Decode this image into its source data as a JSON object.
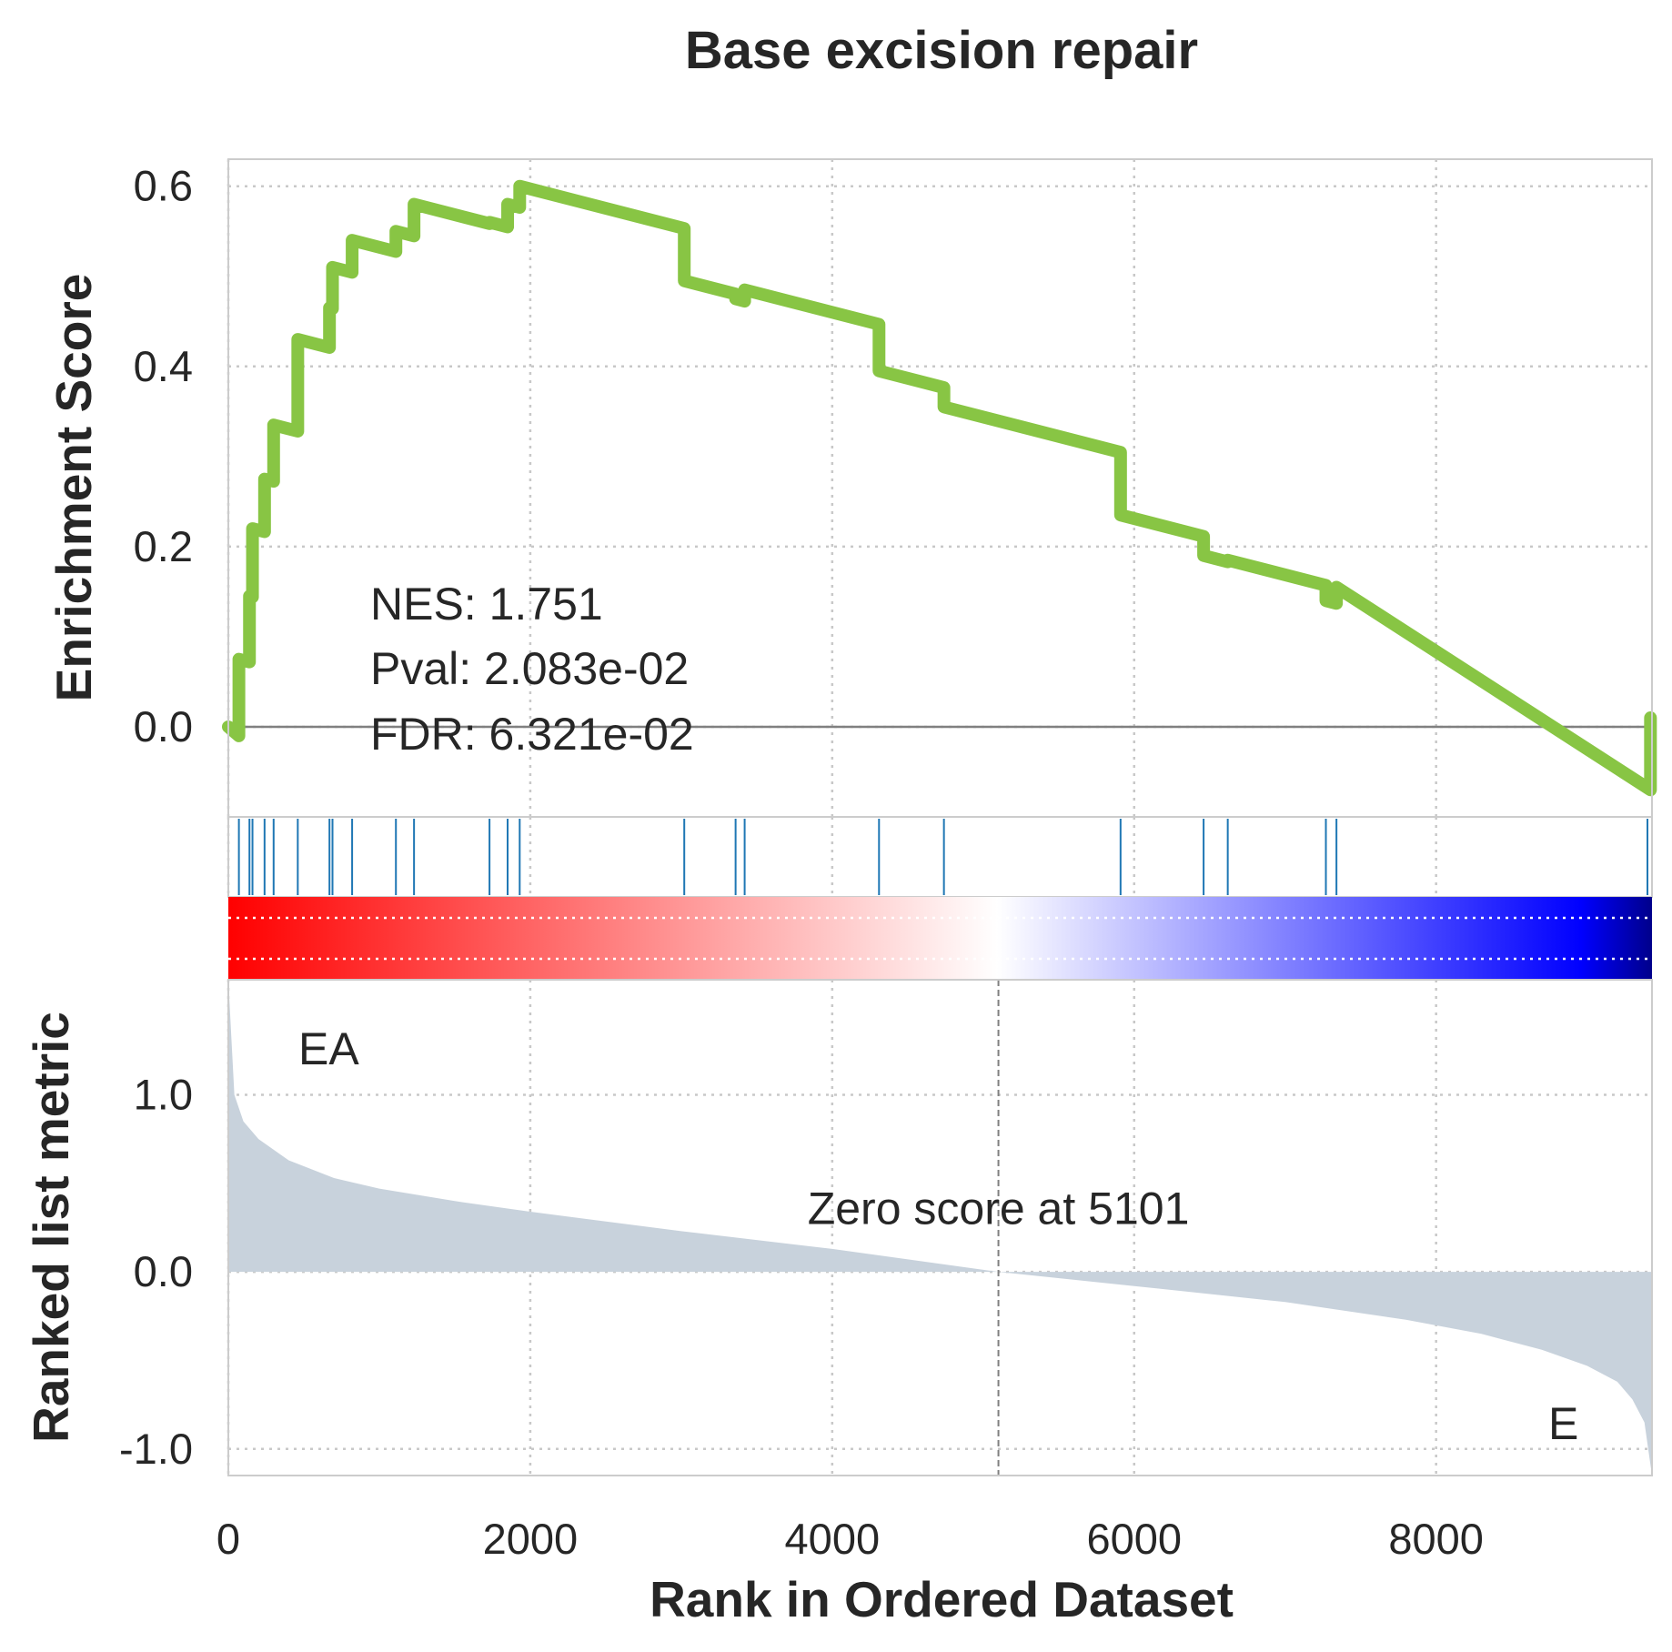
{
  "chart_data": {
    "type": "line",
    "title": "Base excision repair",
    "xlabel": "Rank in Ordered Dataset",
    "xlim": [
      0,
      9430
    ],
    "x_ticks": [
      "0",
      "2000",
      "4000",
      "6000",
      "8000"
    ],
    "x_tick_values": [
      0,
      2000,
      4000,
      6000,
      8000
    ],
    "enrichment": {
      "ylabel": "Enrichment Score",
      "ylim": [
        -0.1,
        0.63
      ],
      "y_ticks": [
        "0.0",
        "0.2",
        "0.4",
        "0.6"
      ],
      "y_tick_values": [
        0.0,
        0.2,
        0.4,
        0.6
      ],
      "color": "#88c544",
      "hits": [
        70,
        140,
        160,
        240,
        300,
        460,
        670,
        690,
        820,
        1110,
        1230,
        1730,
        1850,
        1930,
        3020,
        3360,
        3420,
        4310,
        4740,
        5910,
        6460,
        6620,
        7270,
        7340,
        9400
      ],
      "es_peaks": [
        0.075,
        0.145,
        0.22,
        0.275,
        0.335,
        0.43,
        0.465,
        0.51,
        0.54,
        0.55,
        0.58,
        0.56,
        0.58,
        0.6,
        0.495,
        0.475,
        0.485,
        0.395,
        0.355,
        0.235,
        0.19,
        0.185,
        0.14,
        0.155,
        0.01
      ],
      "es_start": 0.0,
      "es_end": -0.07,
      "baseline": 0.0
    },
    "stats": {
      "nes": "NES: 1.751",
      "pval": "Pval: 2.083e-02",
      "fdr": "FDR: 6.321e-02"
    },
    "hits_color": "#1f77b4",
    "colorbar": {
      "colors": [
        "#ff0000",
        "#ffffff",
        "#0000ff",
        "#00008b"
      ],
      "stops": [
        0.0,
        0.54,
        0.95,
        1.0
      ]
    },
    "ranked": {
      "ylabel": "Ranked list metric",
      "ylim": [
        -1.15,
        1.65
      ],
      "y_ticks": [
        "1.0",
        "0.0",
        "-1.0"
      ],
      "y_tick_values": [
        1.0,
        0.0,
        -1.0
      ],
      "fill_color": "#c8d2dc",
      "zero_score_rank": 5101,
      "zero_label": "Zero score at 5101",
      "x": [
        0,
        40,
        100,
        200,
        400,
        700,
        1000,
        1500,
        2000,
        3000,
        4000,
        5101,
        6000,
        7000,
        7800,
        8300,
        8700,
        9000,
        9200,
        9300,
        9380,
        9430
      ],
      "values": [
        1.65,
        1.0,
        0.85,
        0.75,
        0.63,
        0.53,
        0.47,
        0.4,
        0.34,
        0.23,
        0.13,
        0.0,
        -0.08,
        -0.17,
        -0.27,
        -0.35,
        -0.44,
        -0.53,
        -0.62,
        -0.72,
        -0.85,
        -1.15
      ],
      "label_pos": "EA",
      "label_neg": "E",
      "label_pos_color": "#ff0000",
      "label_neg_color": "#0000ff"
    }
  }
}
